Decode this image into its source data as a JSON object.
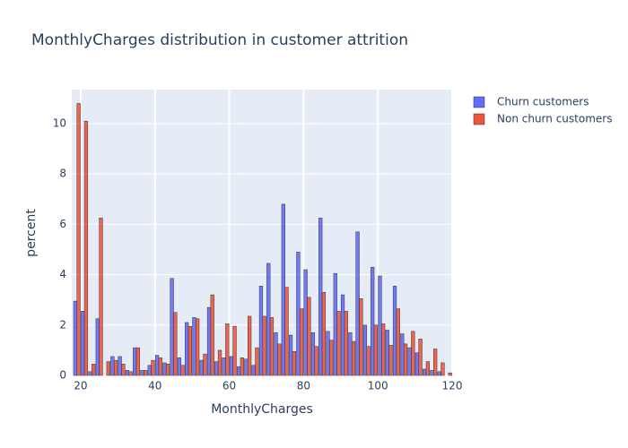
{
  "chart_data": {
    "type": "histogram",
    "title": "MonthlyCharges distribution in customer attrition",
    "x_label": "MonthlyCharges",
    "y_label": "percent",
    "bins": [
      18,
      20,
      22,
      24,
      26,
      28,
      30,
      32,
      34,
      36,
      38,
      40,
      42,
      44,
      46,
      48,
      50,
      52,
      54,
      56,
      58,
      60,
      62,
      64,
      66,
      68,
      70,
      72,
      74,
      76,
      78,
      80,
      82,
      84,
      86,
      88,
      90,
      92,
      94,
      96,
      98,
      100,
      102,
      104,
      106,
      108,
      110,
      112,
      114,
      116,
      118,
      120
    ],
    "series": [
      {
        "name": "Churn customers",
        "color": "#636efa",
        "values": [
          2.95,
          2.55,
          0.15,
          2.25,
          0,
          0.75,
          0.75,
          0.2,
          1.1,
          0.2,
          0.4,
          0.8,
          0.5,
          3.85,
          0.7,
          2.1,
          2.3,
          0.6,
          2.7,
          0.55,
          0.7,
          0.75,
          0.35,
          0.65,
          0.4,
          3.55,
          4.45,
          1.7,
          6.8,
          1.6,
          4.9,
          4.2,
          1.7,
          6.25,
          1.75,
          4.05,
          3.2,
          1.7,
          5.7,
          2.0,
          4.3,
          3.95,
          1.8,
          3.55,
          1.65,
          1.1,
          0.9,
          0.25,
          0.2,
          0.15,
          0
        ]
      },
      {
        "name": "Non churn customers",
        "color": "#ef553b",
        "values": [
          10.8,
          10.1,
          0.45,
          6.25,
          0.55,
          0.6,
          0.45,
          0.15,
          1.1,
          0.2,
          0.6,
          0.7,
          0.45,
          2.5,
          0.4,
          1.95,
          2.25,
          0.85,
          3.2,
          1.0,
          2.05,
          1.95,
          0.7,
          2.35,
          1.1,
          2.35,
          2.3,
          1.25,
          3.5,
          0.95,
          2.65,
          3.1,
          1.15,
          3.3,
          1.4,
          2.55,
          2.55,
          1.35,
          3.05,
          1.15,
          2.0,
          2.05,
          1.2,
          2.65,
          1.25,
          1.75,
          1.45,
          0.55,
          1.05,
          0.5,
          0.1
        ]
      }
    ],
    "xlim": [
      17.6,
      120
    ],
    "xticks": [
      20,
      40,
      60,
      80,
      100,
      120
    ],
    "ylim": [
      0,
      11.35
    ],
    "yticks": [
      0,
      2,
      4,
      6,
      8,
      10
    ],
    "grid": true,
    "legend_position": "right"
  }
}
